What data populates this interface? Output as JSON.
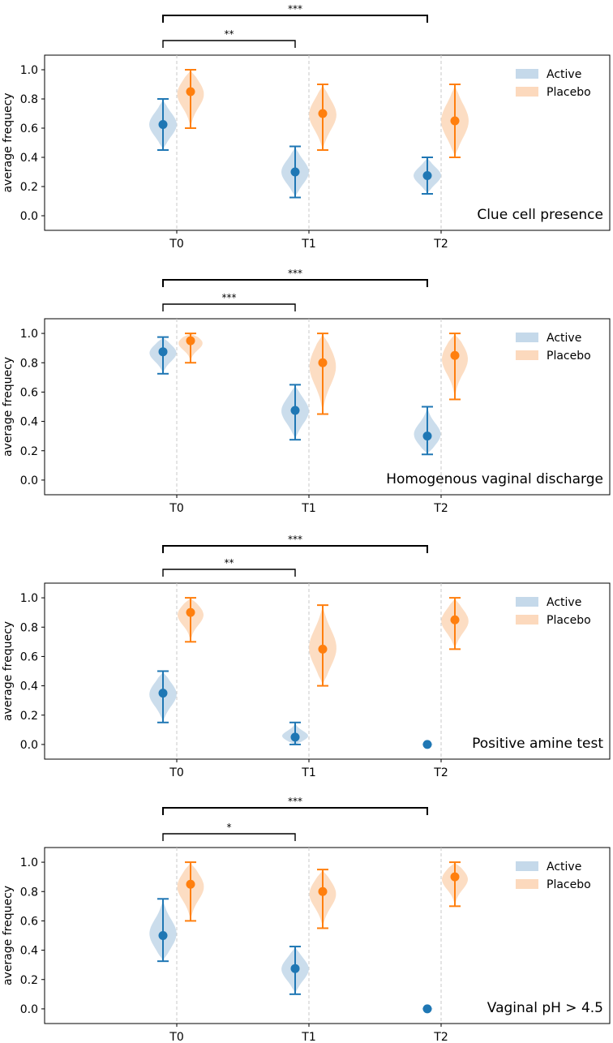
{
  "chart_data": [
    {
      "type": "violin",
      "title": "Clue cell presence",
      "xlabel": "",
      "ylabel": "average frequecy",
      "categories": [
        "T0",
        "T1",
        "T2"
      ],
      "ylim": [
        -0.1,
        1.1
      ],
      "yticks": [
        "0.0",
        "0.2",
        "0.4",
        "0.6",
        "0.8",
        "1.0"
      ],
      "legend": {
        "position": "top-right",
        "entries": [
          "Active",
          "Placebo"
        ]
      },
      "series": [
        {
          "name": "Active",
          "color": "#1f77b4",
          "fill": "#c5d9ea",
          "means": [
            0.625,
            0.3,
            0.275
          ],
          "mins": [
            0.45,
            0.125,
            0.15
          ],
          "maxs": [
            0.8,
            0.475,
            0.4
          ]
        },
        {
          "name": "Placebo",
          "color": "#ff7f0e",
          "fill": "#fcd9bd",
          "means": [
            0.85,
            0.7,
            0.65
          ],
          "mins": [
            0.6,
            0.45,
            0.4
          ],
          "maxs": [
            1.0,
            0.9,
            0.9
          ]
        }
      ],
      "significance": [
        {
          "from": "T0",
          "to": "T1",
          "label": "**"
        },
        {
          "from": "T0",
          "to": "T2",
          "label": "***"
        }
      ]
    },
    {
      "type": "violin",
      "title": "Homogenous vaginal discharge",
      "xlabel": "",
      "ylabel": "average frequecy",
      "categories": [
        "T0",
        "T1",
        "T2"
      ],
      "ylim": [
        -0.1,
        1.1
      ],
      "yticks": [
        "0.0",
        "0.2",
        "0.4",
        "0.6",
        "0.8",
        "1.0"
      ],
      "legend": {
        "position": "top-right",
        "entries": [
          "Active",
          "Placebo"
        ]
      },
      "series": [
        {
          "name": "Active",
          "color": "#1f77b4",
          "fill": "#c5d9ea",
          "means": [
            0.875,
            0.475,
            0.3
          ],
          "mins": [
            0.725,
            0.275,
            0.175
          ],
          "maxs": [
            0.975,
            0.65,
            0.5
          ]
        },
        {
          "name": "Placebo",
          "color": "#ff7f0e",
          "fill": "#fcd9bd",
          "means": [
            0.95,
            0.8,
            0.85
          ],
          "mins": [
            0.8,
            0.45,
            0.55
          ],
          "maxs": [
            1.0,
            1.0,
            1.0
          ]
        }
      ],
      "significance": [
        {
          "from": "T0",
          "to": "T1",
          "label": "***"
        },
        {
          "from": "T0",
          "to": "T2",
          "label": "***"
        }
      ]
    },
    {
      "type": "violin",
      "title": "Positive amine test",
      "xlabel": "",
      "ylabel": "average frequecy",
      "categories": [
        "T0",
        "T1",
        "T2"
      ],
      "ylim": [
        -0.1,
        1.1
      ],
      "yticks": [
        "0.0",
        "0.2",
        "0.4",
        "0.6",
        "0.8",
        "1.0"
      ],
      "legend": {
        "position": "top-right",
        "entries": [
          "Active",
          "Placebo"
        ]
      },
      "series": [
        {
          "name": "Active",
          "color": "#1f77b4",
          "fill": "#c5d9ea",
          "means": [
            0.35,
            0.05,
            0.0
          ],
          "mins": [
            0.15,
            0.0,
            0.0
          ],
          "maxs": [
            0.5,
            0.15,
            0.0
          ]
        },
        {
          "name": "Placebo",
          "color": "#ff7f0e",
          "fill": "#fcd9bd",
          "means": [
            0.9,
            0.65,
            0.85
          ],
          "mins": [
            0.7,
            0.4,
            0.65
          ],
          "maxs": [
            1.0,
            0.95,
            1.0
          ]
        }
      ],
      "significance": [
        {
          "from": "T0",
          "to": "T1",
          "label": "**"
        },
        {
          "from": "T0",
          "to": "T2",
          "label": "***"
        }
      ]
    },
    {
      "type": "violin",
      "title": "Vaginal pH > 4.5",
      "xlabel": "",
      "ylabel": "average frequecy",
      "categories": [
        "T0",
        "T1",
        "T2"
      ],
      "ylim": [
        -0.1,
        1.1
      ],
      "yticks": [
        "0.0",
        "0.2",
        "0.4",
        "0.6",
        "0.8",
        "1.0"
      ],
      "legend": {
        "position": "top-right",
        "entries": [
          "Active",
          "Placebo"
        ]
      },
      "series": [
        {
          "name": "Active",
          "color": "#1f77b4",
          "fill": "#c5d9ea",
          "means": [
            0.5,
            0.275,
            0.0
          ],
          "mins": [
            0.325,
            0.1,
            0.0
          ],
          "maxs": [
            0.75,
            0.425,
            0.0
          ]
        },
        {
          "name": "Placebo",
          "color": "#ff7f0e",
          "fill": "#fcd9bd",
          "means": [
            0.85,
            0.8,
            0.9
          ],
          "mins": [
            0.6,
            0.55,
            0.7
          ],
          "maxs": [
            1.0,
            0.95,
            1.0
          ]
        }
      ],
      "significance": [
        {
          "from": "T0",
          "to": "T1",
          "label": "*"
        },
        {
          "from": "T0",
          "to": "T2",
          "label": "***"
        }
      ]
    }
  ]
}
